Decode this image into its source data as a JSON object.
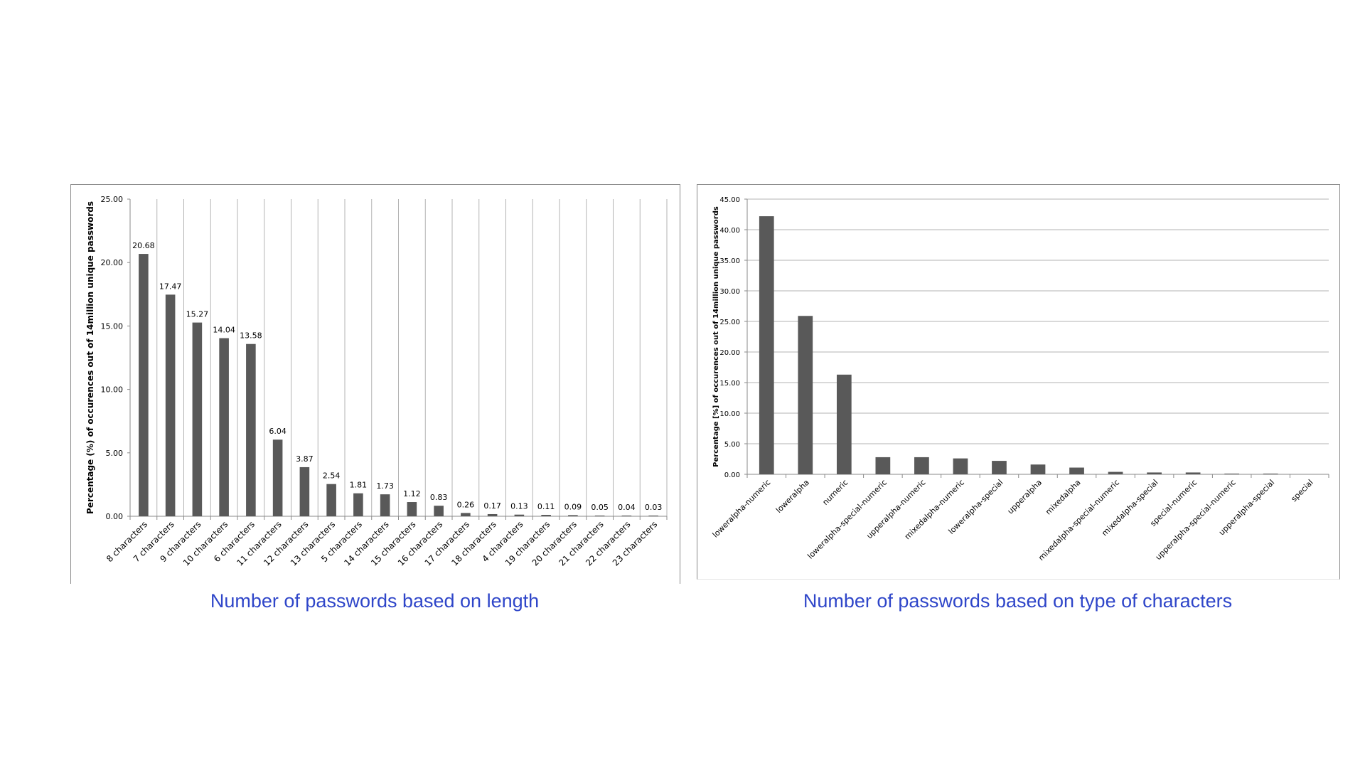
{
  "captions": {
    "left": "Number of passwords based on length",
    "right": "Number of passwords based on type of characters"
  },
  "colors": {
    "bar": "#595959",
    "grid": "#b3b3b3",
    "axis": "#8a8a8a",
    "caption": "#2f46c9",
    "text": "#000000"
  },
  "chart_data": [
    {
      "type": "bar",
      "title": "",
      "xlabel": "",
      "ylabel": "Percentage (%) of occurences out of 14million unique passwords",
      "ylim": [
        0,
        25
      ],
      "yticks": [
        "0.00",
        "5.00",
        "10.00",
        "15.00",
        "20.00",
        "25.00"
      ],
      "grid": "vertical",
      "data_labels": true,
      "categories": [
        "8 characters",
        "7 characters",
        "9 characters",
        "10 characters",
        "6 characters",
        "11 characters",
        "12 characters",
        "13 characters",
        "5 characters",
        "14 characters",
        "15 characters",
        "16 characters",
        "17 characters",
        "18 characters",
        "4 characters",
        "19 characters",
        "20 characters",
        "21 characters",
        "22 characters",
        "23 characters"
      ],
      "values": [
        20.68,
        17.47,
        15.27,
        14.04,
        13.58,
        6.04,
        3.87,
        2.54,
        1.81,
        1.73,
        1.12,
        0.83,
        0.26,
        0.17,
        0.13,
        0.11,
        0.09,
        0.05,
        0.04,
        0.03
      ],
      "value_labels": [
        "20.68",
        "17.47",
        "15.27",
        "14.04",
        "13.58",
        "6.04",
        "3.87",
        "2.54",
        "1.81",
        "1.73",
        "1.12",
        "0.83",
        "0.26",
        "0.17",
        "0.13",
        "0.11",
        "0.09",
        "0.05",
        "0.04",
        "0.03"
      ]
    },
    {
      "type": "bar",
      "title": "",
      "xlabel": "",
      "ylabel": "Percentage [%] of occurences out of 14million unique passwords",
      "ylim": [
        0,
        45
      ],
      "yticks": [
        "0.00",
        "5.00",
        "10.00",
        "15.00",
        "20.00",
        "25.00",
        "30.00",
        "35.00",
        "40.00",
        "45.00"
      ],
      "grid": "horizontal",
      "data_labels": false,
      "categories": [
        "loweralpha-numeric",
        "loweralpha",
        "numeric",
        "loweralpha-special-numeric",
        "upperalpha-numeric",
        "mixedalpha-numeric",
        "loweralpha-special",
        "upperalpha",
        "mixedalpha",
        "mixedalpha-special-numeric",
        "mixedalpha-special",
        "special-numeric",
        "upperalpha-special-numeric",
        "upperalpha-special",
        "special"
      ],
      "values": [
        42.2,
        25.9,
        16.3,
        2.8,
        2.8,
        2.6,
        2.2,
        1.6,
        1.1,
        0.4,
        0.3,
        0.3,
        0.1,
        0.1,
        0.0
      ]
    }
  ]
}
